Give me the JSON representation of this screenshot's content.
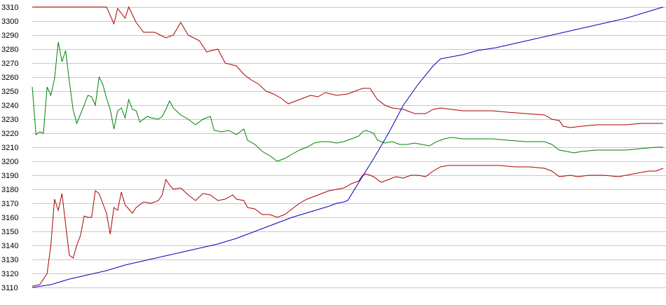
{
  "chart_data": {
    "type": "line",
    "title": "",
    "xlabel": "",
    "ylabel": "",
    "ylim": [
      3110,
      3310
    ],
    "yticks": [
      3110,
      3120,
      3130,
      3140,
      3150,
      3160,
      3170,
      3180,
      3190,
      3200,
      3210,
      3220,
      3230,
      3240,
      3250,
      3260,
      3270,
      3280,
      3290,
      3300,
      3310
    ],
    "grid": "horizontal",
    "legend": "none",
    "series": [
      {
        "color": "#aa0000",
        "points": [
          [
            0,
            3310
          ],
          [
            5,
            3310
          ],
          [
            10,
            3310
          ],
          [
            15,
            3310
          ],
          [
            20,
            3310
          ],
          [
            22,
            3298
          ],
          [
            23,
            3309
          ],
          [
            25,
            3302
          ],
          [
            26,
            3310
          ],
          [
            28,
            3299
          ],
          [
            30,
            3292
          ],
          [
            33,
            3292
          ],
          [
            36,
            3288
          ],
          [
            38,
            3290
          ],
          [
            40,
            3299
          ],
          [
            42,
            3290
          ],
          [
            45,
            3286
          ],
          [
            47,
            3278
          ],
          [
            50,
            3280
          ],
          [
            52,
            3270
          ],
          [
            55,
            3268
          ],
          [
            57,
            3262
          ],
          [
            59,
            3258
          ],
          [
            61,
            3255
          ],
          [
            63,
            3250
          ],
          [
            65,
            3248
          ],
          [
            67,
            3245
          ],
          [
            69,
            3241
          ],
          [
            71,
            3243
          ],
          [
            73,
            3245
          ],
          [
            75,
            3247
          ],
          [
            77,
            3246
          ],
          [
            79,
            3249
          ],
          [
            82,
            3247
          ],
          [
            85,
            3248
          ],
          [
            87,
            3250
          ],
          [
            89,
            3252
          ],
          [
            91,
            3252
          ],
          [
            93,
            3244
          ],
          [
            95,
            3240
          ],
          [
            97,
            3238
          ],
          [
            100,
            3237
          ],
          [
            103,
            3234
          ],
          [
            106,
            3234
          ],
          [
            108,
            3237
          ],
          [
            110,
            3238
          ],
          [
            113,
            3237
          ],
          [
            116,
            3236
          ],
          [
            120,
            3236
          ],
          [
            124,
            3236
          ],
          [
            128,
            3235
          ],
          [
            133,
            3234
          ],
          [
            138,
            3233
          ],
          [
            140,
            3230
          ],
          [
            142,
            3229
          ],
          [
            143,
            3225
          ],
          [
            145,
            3224
          ],
          [
            148,
            3225
          ],
          [
            152,
            3226
          ],
          [
            156,
            3226
          ],
          [
            160,
            3226
          ],
          [
            164,
            3227
          ],
          [
            168,
            3227
          ],
          [
            170,
            3227
          ]
        ]
      },
      {
        "color": "#008000",
        "points": [
          [
            0,
            3253
          ],
          [
            1,
            3219
          ],
          [
            2,
            3221
          ],
          [
            3,
            3220
          ],
          [
            4,
            3253
          ],
          [
            5,
            3247
          ],
          [
            6,
            3259
          ],
          [
            7,
            3285
          ],
          [
            8,
            3271
          ],
          [
            9,
            3279
          ],
          [
            10,
            3257
          ],
          [
            11,
            3237
          ],
          [
            12,
            3227
          ],
          [
            14,
            3240
          ],
          [
            15,
            3247
          ],
          [
            16,
            3246
          ],
          [
            17,
            3240
          ],
          [
            18,
            3260
          ],
          [
            19,
            3255
          ],
          [
            20,
            3245
          ],
          [
            21,
            3237
          ],
          [
            22,
            3223
          ],
          [
            23,
            3236
          ],
          [
            24,
            3238
          ],
          [
            25,
            3231
          ],
          [
            26,
            3244
          ],
          [
            27,
            3237
          ],
          [
            28,
            3236
          ],
          [
            29,
            3228
          ],
          [
            31,
            3232
          ],
          [
            32,
            3231
          ],
          [
            34,
            3230
          ],
          [
            35,
            3232
          ],
          [
            36,
            3237
          ],
          [
            37,
            3243
          ],
          [
            38,
            3238
          ],
          [
            40,
            3233
          ],
          [
            42,
            3230
          ],
          [
            44,
            3226
          ],
          [
            46,
            3230
          ],
          [
            48,
            3232
          ],
          [
            49,
            3222
          ],
          [
            51,
            3221
          ],
          [
            53,
            3222
          ],
          [
            55,
            3219
          ],
          [
            57,
            3223
          ],
          [
            58,
            3215
          ],
          [
            60,
            3212
          ],
          [
            62,
            3207
          ],
          [
            64,
            3204
          ],
          [
            66,
            3200
          ],
          [
            68,
            3202
          ],
          [
            70,
            3205
          ],
          [
            72,
            3208
          ],
          [
            74,
            3210
          ],
          [
            76,
            3213
          ],
          [
            78,
            3214
          ],
          [
            80,
            3214
          ],
          [
            82,
            3213
          ],
          [
            84,
            3214
          ],
          [
            86,
            3216
          ],
          [
            88,
            3218
          ],
          [
            89,
            3221
          ],
          [
            90,
            3222
          ],
          [
            92,
            3220
          ],
          [
            93,
            3215
          ],
          [
            95,
            3213
          ],
          [
            97,
            3214
          ],
          [
            99,
            3212
          ],
          [
            101,
            3212
          ],
          [
            103,
            3213
          ],
          [
            105,
            3212
          ],
          [
            107,
            3211
          ],
          [
            109,
            3214
          ],
          [
            111,
            3216
          ],
          [
            113,
            3217
          ],
          [
            116,
            3216
          ],
          [
            120,
            3216
          ],
          [
            124,
            3216
          ],
          [
            128,
            3215
          ],
          [
            133,
            3214
          ],
          [
            138,
            3214
          ],
          [
            140,
            3212
          ],
          [
            142,
            3208
          ],
          [
            144,
            3207
          ],
          [
            146,
            3206
          ],
          [
            148,
            3207
          ],
          [
            152,
            3208
          ],
          [
            156,
            3208
          ],
          [
            160,
            3208
          ],
          [
            164,
            3209
          ],
          [
            168,
            3210
          ],
          [
            170,
            3210
          ]
        ]
      },
      {
        "color": "#aa0000",
        "points": [
          [
            0,
            3111
          ],
          [
            2,
            3112
          ],
          [
            4,
            3120
          ],
          [
            5,
            3140
          ],
          [
            6,
            3173
          ],
          [
            7,
            3165
          ],
          [
            8,
            3177
          ],
          [
            9,
            3155
          ],
          [
            10,
            3133
          ],
          [
            11,
            3131
          ],
          [
            12,
            3140
          ],
          [
            13,
            3147
          ],
          [
            14,
            3161
          ],
          [
            15,
            3160
          ],
          [
            16,
            3160
          ],
          [
            17,
            3179
          ],
          [
            18,
            3177
          ],
          [
            19,
            3170
          ],
          [
            20,
            3163
          ],
          [
            21,
            3148
          ],
          [
            22,
            3167
          ],
          [
            23,
            3165
          ],
          [
            24,
            3178
          ],
          [
            25,
            3169
          ],
          [
            27,
            3163
          ],
          [
            28,
            3167
          ],
          [
            30,
            3171
          ],
          [
            32,
            3170
          ],
          [
            34,
            3172
          ],
          [
            35,
            3176
          ],
          [
            36,
            3187
          ],
          [
            37,
            3183
          ],
          [
            38,
            3180
          ],
          [
            40,
            3181
          ],
          [
            42,
            3176
          ],
          [
            44,
            3172
          ],
          [
            46,
            3177
          ],
          [
            48,
            3176
          ],
          [
            50,
            3172
          ],
          [
            52,
            3173
          ],
          [
            54,
            3176
          ],
          [
            55,
            3173
          ],
          [
            57,
            3172
          ],
          [
            58,
            3167
          ],
          [
            60,
            3166
          ],
          [
            62,
            3162
          ],
          [
            64,
            3162
          ],
          [
            66,
            3160
          ],
          [
            68,
            3162
          ],
          [
            70,
            3166
          ],
          [
            72,
            3170
          ],
          [
            74,
            3173
          ],
          [
            76,
            3175
          ],
          [
            78,
            3177
          ],
          [
            80,
            3179
          ],
          [
            82,
            3180
          ],
          [
            84,
            3181
          ],
          [
            86,
            3184
          ],
          [
            88,
            3186
          ],
          [
            89,
            3190
          ],
          [
            90,
            3191
          ],
          [
            92,
            3189
          ],
          [
            94,
            3185
          ],
          [
            96,
            3187
          ],
          [
            98,
            3189
          ],
          [
            100,
            3188
          ],
          [
            102,
            3190
          ],
          [
            104,
            3190
          ],
          [
            106,
            3189
          ],
          [
            108,
            3193
          ],
          [
            110,
            3196
          ],
          [
            112,
            3197
          ],
          [
            115,
            3197
          ],
          [
            118,
            3197
          ],
          [
            122,
            3197
          ],
          [
            126,
            3197
          ],
          [
            130,
            3196
          ],
          [
            134,
            3196
          ],
          [
            138,
            3195
          ],
          [
            140,
            3193
          ],
          [
            142,
            3189
          ],
          [
            145,
            3190
          ],
          [
            147,
            3189
          ],
          [
            150,
            3190
          ],
          [
            154,
            3190
          ],
          [
            158,
            3189
          ],
          [
            162,
            3191
          ],
          [
            166,
            3193
          ],
          [
            168,
            3193
          ],
          [
            170,
            3195
          ]
        ]
      },
      {
        "color": "#0000c0",
        "points": [
          [
            0,
            3110
          ],
          [
            5,
            3112
          ],
          [
            10,
            3116
          ],
          [
            15,
            3119
          ],
          [
            20,
            3122
          ],
          [
            25,
            3126
          ],
          [
            30,
            3129
          ],
          [
            35,
            3132
          ],
          [
            40,
            3135
          ],
          [
            45,
            3138
          ],
          [
            50,
            3141
          ],
          [
            55,
            3145
          ],
          [
            60,
            3150
          ],
          [
            65,
            3155
          ],
          [
            70,
            3160
          ],
          [
            75,
            3164
          ],
          [
            80,
            3168
          ],
          [
            82,
            3170
          ],
          [
            84,
            3171
          ],
          [
            85,
            3172
          ],
          [
            88,
            3185
          ],
          [
            92,
            3202
          ],
          [
            96,
            3220
          ],
          [
            100,
            3240
          ],
          [
            104,
            3255
          ],
          [
            108,
            3268
          ],
          [
            110,
            3273
          ],
          [
            112,
            3274
          ],
          [
            116,
            3276
          ],
          [
            120,
            3279
          ],
          [
            125,
            3281
          ],
          [
            130,
            3284
          ],
          [
            135,
            3287
          ],
          [
            140,
            3290
          ],
          [
            145,
            3293
          ],
          [
            150,
            3296
          ],
          [
            155,
            3299
          ],
          [
            160,
            3302
          ],
          [
            165,
            3306
          ],
          [
            170,
            3310
          ]
        ]
      }
    ]
  }
}
